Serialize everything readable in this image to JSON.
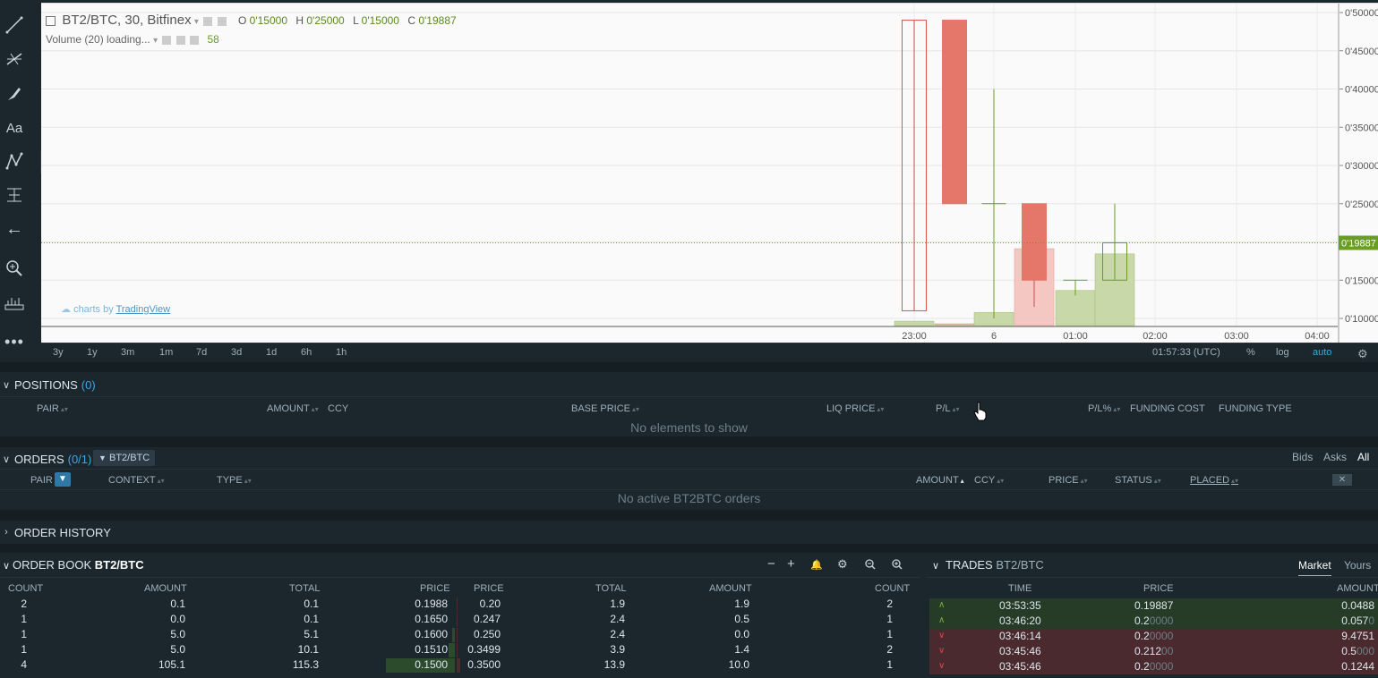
{
  "chart": {
    "symbol": "BT2/BTC, 30, Bitfinex",
    "ohlc": {
      "o_label": "O",
      "o": "0'15000",
      "h_label": "H",
      "h": "0'25000",
      "l_label": "L",
      "l": "0'15000",
      "c_label": "C",
      "c": "0'19887"
    },
    "volume_label": "Volume (20) loading...",
    "volume_value": "58",
    "last_price_tag": "0'19887",
    "watermark_prefix": "charts by",
    "watermark_link": "TradingView",
    "y_ticks": [
      "0'50000",
      "0'45000",
      "0'40000",
      "0'35000",
      "0'30000",
      "0'25000",
      "0'20000",
      "0'15000",
      "0'10000"
    ],
    "x_ticks": [
      "23:00",
      "6",
      "01:00",
      "02:00",
      "03:00",
      "04:00"
    ]
  },
  "chart_data": {
    "type": "candlestick",
    "ylim": [
      0.09,
      0.51
    ],
    "candles": [
      {
        "t": "23:00",
        "open": 0.49,
        "high": 0.49,
        "low": 0.11,
        "close": 0.11,
        "hollow": true
      },
      {
        "t": "23:30",
        "open": 0.49,
        "high": 0.49,
        "low": 0.25,
        "close": 0.25
      },
      {
        "t": "00:00",
        "open": 0.25,
        "high": 0.4,
        "low": 0.1,
        "close": 0.25
      },
      {
        "t": "00:30",
        "open": 0.25,
        "high": 0.25,
        "low": 0.115,
        "close": 0.15
      },
      {
        "t": "01:00",
        "open": 0.15,
        "high": 0.15,
        "low": 0.13,
        "close": 0.15
      },
      {
        "t": "01:30",
        "open": 0.15,
        "high": 0.25,
        "low": 0.15,
        "close": 0.19887
      }
    ],
    "volume": [
      {
        "t": "23:00",
        "v": 6
      },
      {
        "t": "23:30",
        "v": 1
      },
      {
        "t": "00:00",
        "v": 18
      },
      {
        "t": "00:30",
        "v": 105
      },
      {
        "t": "01:00",
        "v": 48
      },
      {
        "t": "01:30",
        "v": 98
      }
    ]
  },
  "toolbar": {
    "icons": [
      "trend-line-icon",
      "fib-icon",
      "brush-icon",
      "text-icon",
      "pattern-icon",
      "measure-icon",
      "back-arrow-icon",
      "zoom-icon",
      "ruler-icon",
      "more-icon"
    ]
  },
  "timeframes": [
    "3y",
    "1y",
    "3m",
    "1m",
    "7d",
    "3d",
    "1d",
    "6h",
    "1h"
  ],
  "chart_footer": {
    "clock": "01:57:33 (UTC)",
    "pct": "%",
    "log": "log",
    "auto": "auto"
  },
  "positions": {
    "title": "POSITIONS",
    "count": "(0)",
    "columns": [
      "PAIR",
      "AMOUNT",
      "CCY",
      "BASE PRICE",
      "LIQ PRICE",
      "P/L",
      "P/L%",
      "FUNDING COST",
      "FUNDING TYPE"
    ],
    "empty": "No elements to show"
  },
  "orders": {
    "title": "ORDERS",
    "count": "(0/1)",
    "filter_chip": "BT2/BTC",
    "tabs": [
      "Bids",
      "Asks",
      "All"
    ],
    "columns": [
      "PAIR",
      "CONTEXT",
      "TYPE",
      "AMOUNT",
      "CCY",
      "PRICE",
      "STATUS",
      "PLACED"
    ],
    "empty": "No active BT2BTC orders"
  },
  "order_history": {
    "title": "ORDER HISTORY"
  },
  "order_book": {
    "title_prefix": "ORDER BOOK",
    "pair": "BT2/BTC",
    "bid_columns": [
      "COUNT",
      "AMOUNT",
      "TOTAL",
      "PRICE"
    ],
    "ask_columns": [
      "PRICE",
      "TOTAL",
      "AMOUNT",
      "COUNT"
    ],
    "bids": [
      {
        "count": "2",
        "amount": "0.1",
        "total": "0.1",
        "price": "0.1988"
      },
      {
        "count": "1",
        "amount": "0.0",
        "total": "0.1",
        "price": "0.1650"
      },
      {
        "count": "1",
        "amount": "5.0",
        "total": "5.1",
        "price": "0.1600"
      },
      {
        "count": "1",
        "amount": "5.0",
        "total": "10.1",
        "price": "0.1510"
      },
      {
        "count": "4",
        "amount": "105.1",
        "total": "115.3",
        "price": "0.1500"
      }
    ],
    "asks": [
      {
        "price": "0.20",
        "total": "1.9",
        "amount": "1.9",
        "count": "2"
      },
      {
        "price": "0.247",
        "total": "2.4",
        "amount": "0.5",
        "count": "1"
      },
      {
        "price": "0.250",
        "total": "2.4",
        "amount": "0.0",
        "count": "1"
      },
      {
        "price": "0.3499",
        "total": "3.9",
        "amount": "1.4",
        "count": "2"
      },
      {
        "price": "0.3500",
        "total": "13.9",
        "amount": "10.0",
        "count": "1"
      }
    ]
  },
  "trades": {
    "title_prefix": "TRADES",
    "pair": "BT2/BTC",
    "tabs": [
      "Market",
      "Yours"
    ],
    "columns": [
      "TIME",
      "PRICE",
      "AMOUNT"
    ],
    "rows": [
      {
        "side": "buy",
        "time": "03:53:35",
        "price": "0.19887",
        "price_dim": "",
        "amount": "0.0488",
        "amount_dim": ""
      },
      {
        "side": "buy",
        "time": "03:46:20",
        "price": "0.2",
        "price_dim": "0000",
        "amount": "0.057",
        "amount_dim": "0"
      },
      {
        "side": "sell",
        "time": "03:46:14",
        "price": "0.2",
        "price_dim": "0000",
        "amount": "9.4751",
        "amount_dim": ""
      },
      {
        "side": "sell",
        "time": "03:45:46",
        "price": "0.212",
        "price_dim": "00",
        "amount": "0.5",
        "amount_dim": "000"
      },
      {
        "side": "sell",
        "time": "03:45:46",
        "price": "0.2",
        "price_dim": "0000",
        "amount": "0.1244",
        "amount_dim": ""
      }
    ]
  }
}
